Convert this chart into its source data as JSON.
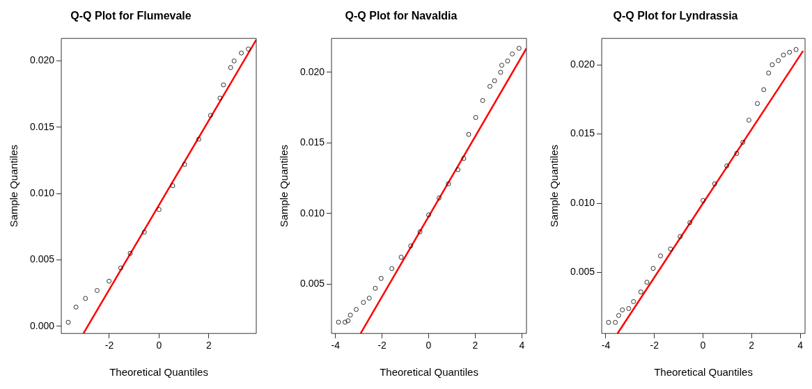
{
  "chart_data": [
    {
      "type": "scatter",
      "title": "Q-Q Plot for Flumevale",
      "xlabel": "Theoretical Quantiles",
      "ylabel": "Sample Quantiles",
      "grid": false,
      "xlim": [
        -3.93,
        3.91
      ],
      "ylim": [
        -0.00054,
        0.0217
      ],
      "xticks": [
        -2,
        0,
        2
      ],
      "yticks": [
        {
          "value": 0,
          "label": "0.000"
        },
        {
          "value": 0.005,
          "label": "0.005"
        },
        {
          "value": 0.01,
          "label": "0.010"
        },
        {
          "value": 0.015,
          "label": "0.015"
        },
        {
          "value": 0.02,
          "label": "0.020"
        }
      ],
      "series": [
        {
          "type": "scatter",
          "marker": "circle",
          "color": "#000000",
          "x": [
            -3.65,
            -3.34,
            -2.96,
            -2.49,
            -2.01,
            -1.54,
            -1.16,
            -0.59,
            0,
            0.55,
            1.03,
            1.6,
            2.07,
            2.45,
            2.59,
            2.88,
            3.02,
            3.31,
            3.59
          ],
          "values": [
            0.0003,
            0.00145,
            0.0021,
            0.0027,
            0.0034,
            0.0044,
            0.0055,
            0.0071,
            0.0088,
            0.0106,
            0.0122,
            0.0141,
            0.0159,
            0.0172,
            0.0182,
            0.0195,
            0.02,
            0.0206,
            0.0209
          ]
        },
        {
          "type": "line",
          "marker": "none",
          "color": "#ff0000",
          "x": [
            -3.04,
            3.91
          ],
          "values": [
            -0.00054,
            0.0216
          ]
        }
      ]
    },
    {
      "type": "scatter",
      "title": "Q-Q Plot for Navaldia",
      "xlabel": "Theoretical Quantiles",
      "ylabel": "Sample Quantiles",
      "grid": false,
      "xlim": [
        -4.17,
        4.2
      ],
      "ylim": [
        0.0015,
        0.0224
      ],
      "xticks": [
        -4,
        -2,
        0,
        2,
        4
      ],
      "yticks": [
        {
          "value": 0.005,
          "label": "0.005"
        },
        {
          "value": 0.01,
          "label": "0.010"
        },
        {
          "value": 0.015,
          "label": "0.015"
        },
        {
          "value": 0.02,
          "label": "0.020"
        }
      ],
      "series": [
        {
          "type": "scatter",
          "marker": "circle",
          "color": "#000000",
          "x": [
            -3.87,
            -3.59,
            -3.46,
            -3.36,
            -3.11,
            -2.8,
            -2.55,
            -2.29,
            -2.04,
            -1.58,
            -1.18,
            -0.77,
            -0.37,
            0,
            0.45,
            0.85,
            1.26,
            1.51,
            1.72,
            2.02,
            2.32,
            2.63,
            2.83,
            3.09,
            3.14,
            3.39,
            3.59,
            3.88
          ],
          "values": [
            0.0023,
            0.0023,
            0.0024,
            0.0028,
            0.0032,
            0.0037,
            0.004,
            0.0047,
            0.0054,
            0.0061,
            0.0069,
            0.0077,
            0.0087,
            0.0099,
            0.0111,
            0.0121,
            0.0131,
            0.0139,
            0.0156,
            0.0168,
            0.018,
            0.019,
            0.0194,
            0.02,
            0.0205,
            0.0208,
            0.0213,
            0.0217
          ]
        },
        {
          "type": "line",
          "marker": "none",
          "color": "#ff0000",
          "x": [
            -2.92,
            4.2
          ],
          "values": [
            0.0015,
            0.0217
          ]
        }
      ]
    },
    {
      "type": "scatter",
      "title": "Q-Q Plot for Lyndrassia",
      "xlabel": "Theoretical Quantiles",
      "ylabel": "Sample Quantiles",
      "grid": false,
      "xlim": [
        -4.17,
        4.2
      ],
      "ylim": [
        0.0006,
        0.0219
      ],
      "xticks": [
        -4,
        -2,
        0,
        2,
        4
      ],
      "yticks": [
        {
          "value": 0.005,
          "label": "0.005"
        },
        {
          "value": 0.01,
          "label": "0.010"
        },
        {
          "value": 0.015,
          "label": "0.015"
        },
        {
          "value": 0.02,
          "label": "0.020"
        }
      ],
      "series": [
        {
          "type": "scatter",
          "marker": "circle",
          "color": "#000000",
          "x": [
            -3.89,
            -3.61,
            -3.47,
            -3.32,
            -3.06,
            -2.86,
            -2.56,
            -2.31,
            -2.05,
            -1.75,
            -1.34,
            -0.94,
            -0.54,
            0,
            0.48,
            0.98,
            1.39,
            1.64,
            1.89,
            2.24,
            2.5,
            2.7,
            2.85,
            3.1,
            3.31,
            3.56,
            3.83
          ],
          "values": [
            0.0014,
            0.0014,
            0.0019,
            0.0023,
            0.0024,
            0.0029,
            0.0036,
            0.0043,
            0.0053,
            0.0062,
            0.0067,
            0.0076,
            0.0086,
            0.0102,
            0.0114,
            0.0127,
            0.0136,
            0.0144,
            0.016,
            0.0172,
            0.0182,
            0.0194,
            0.02,
            0.0203,
            0.0207,
            0.0209,
            0.0211
          ]
        },
        {
          "type": "line",
          "marker": "none",
          "color": "#ff0000",
          "x": [
            -3.52,
            4.12
          ],
          "values": [
            0.0006,
            0.021
          ]
        }
      ]
    }
  ]
}
